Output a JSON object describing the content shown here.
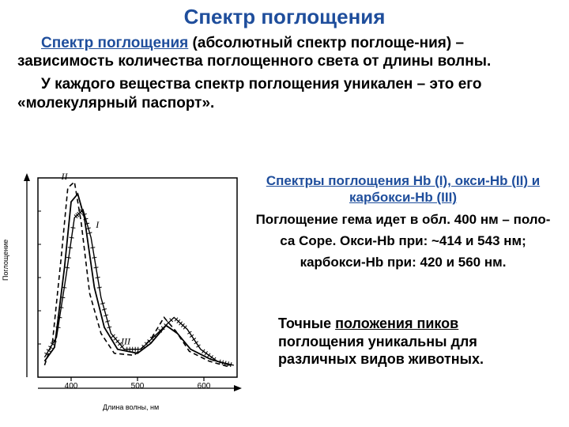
{
  "title": "Спектр поглощения",
  "p1_lead": "Спектр поглощения",
  "p1_rest": " (абсолютный спектр поглоще-ния) – зависимость количества поглощенного света от длины волны.",
  "p2": "У каждого вещества спектр поглощения уникален – это его «молекулярный паспорт».",
  "subtitle_line1": "Спектры поглощения Hb (I), окси-Hb (II) и",
  "subtitle_line2": "карбокси-Hb (III)",
  "body_line1": "Поглощение гема идет в обл. 400 нм – поло-",
  "body_line2": "са Соре.  Окси-Hb при: ~414 и 543 нм;",
  "body_line3": "карбокси-Hb при: 420 и 560 нм.",
  "bottom_l1_a": "Точные ",
  "bottom_l1_b": "положения пиков",
  "bottom_l2": "поглощения уникальны для",
  "bottom_l3": "различных видов животных.",
  "ylabel": "Поглощение",
  "xlabel": "Длина волны, нм",
  "chart": {
    "type": "line",
    "background": "#ffffff",
    "stroke": "#000000",
    "x_ticks": [
      "400",
      "500",
      "600"
    ],
    "x_range": [
      350,
      650
    ],
    "y_range": [
      0,
      100
    ],
    "curve_I_label": "I",
    "curve_II_label": "II",
    "curve_III_label": "III",
    "curves": {
      "I": {
        "style": "solid",
        "pts": [
          [
            360,
            8
          ],
          [
            375,
            15
          ],
          [
            390,
            55
          ],
          [
            400,
            88
          ],
          [
            410,
            92
          ],
          [
            420,
            80
          ],
          [
            435,
            45
          ],
          [
            450,
            25
          ],
          [
            470,
            14
          ],
          [
            500,
            12
          ],
          [
            520,
            17
          ],
          [
            543,
            26
          ],
          [
            560,
            22
          ],
          [
            580,
            14
          ],
          [
            610,
            9
          ],
          [
            640,
            6
          ]
        ]
      },
      "II": {
        "style": "dashed",
        "pts": [
          [
            360,
            6
          ],
          [
            372,
            18
          ],
          [
            385,
            60
          ],
          [
            395,
            95
          ],
          [
            405,
            98
          ],
          [
            415,
            78
          ],
          [
            428,
            42
          ],
          [
            445,
            22
          ],
          [
            465,
            12
          ],
          [
            495,
            11
          ],
          [
            520,
            19
          ],
          [
            540,
            30
          ],
          [
            558,
            23
          ],
          [
            578,
            13
          ],
          [
            608,
            8
          ],
          [
            640,
            5
          ]
        ]
      },
      "III": {
        "style": "hatch",
        "pts": [
          [
            360,
            10
          ],
          [
            378,
            20
          ],
          [
            392,
            50
          ],
          [
            405,
            80
          ],
          [
            418,
            84
          ],
          [
            430,
            70
          ],
          [
            445,
            40
          ],
          [
            460,
            22
          ],
          [
            480,
            14
          ],
          [
            505,
            14
          ],
          [
            530,
            22
          ],
          [
            555,
            30
          ],
          [
            575,
            24
          ],
          [
            595,
            14
          ],
          [
            620,
            8
          ],
          [
            645,
            6
          ]
        ]
      }
    }
  }
}
